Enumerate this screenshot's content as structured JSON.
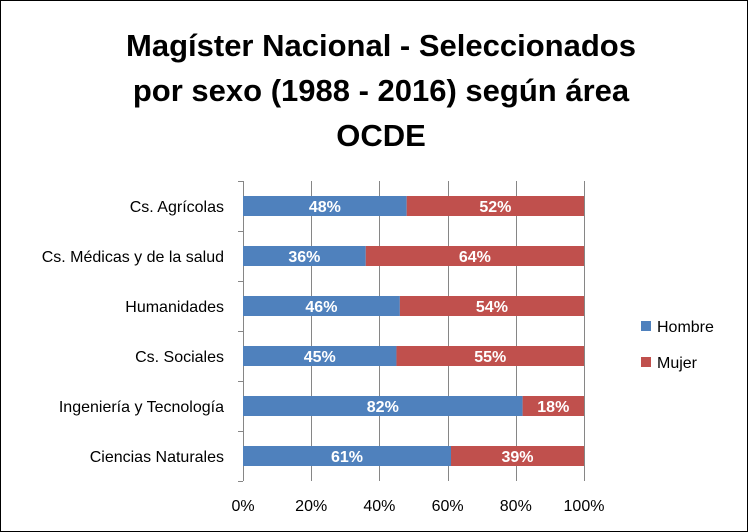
{
  "chart_data": {
    "type": "bar",
    "orientation": "horizontal",
    "stacked": "percent",
    "title": "Magíster Nacional - Seleccionados por sexo (1988 - 2016) según área OCDE",
    "title_lines": [
      "Magíster Nacional - Seleccionados",
      "por sexo (1988 - 2016) según área",
      "OCDE"
    ],
    "categories": [
      "Cs. Agrícolas",
      "Cs. Médicas y de la salud",
      "Humanidades",
      "Cs. Sociales",
      "Ingeniería y Tecnología",
      "Ciencias Naturales"
    ],
    "series": [
      {
        "name": "Hombre",
        "color": "#4F81BD",
        "values": [
          48,
          36,
          46,
          45,
          82,
          61
        ],
        "labels": [
          "48%",
          "36%",
          "46%",
          "45%",
          "82%",
          "61%"
        ]
      },
      {
        "name": "Mujer",
        "color": "#C0504D",
        "values": [
          52,
          64,
          54,
          55,
          18,
          39
        ],
        "labels": [
          "52%",
          "64%",
          "54%",
          "55%",
          "18%",
          "39%"
        ]
      }
    ],
    "x_ticks": [
      "0%",
      "20%",
      "40%",
      "60%",
      "80%",
      "100%"
    ],
    "xlim": [
      0,
      100
    ],
    "grid": true,
    "legend_position": "right",
    "data_labels": true
  }
}
